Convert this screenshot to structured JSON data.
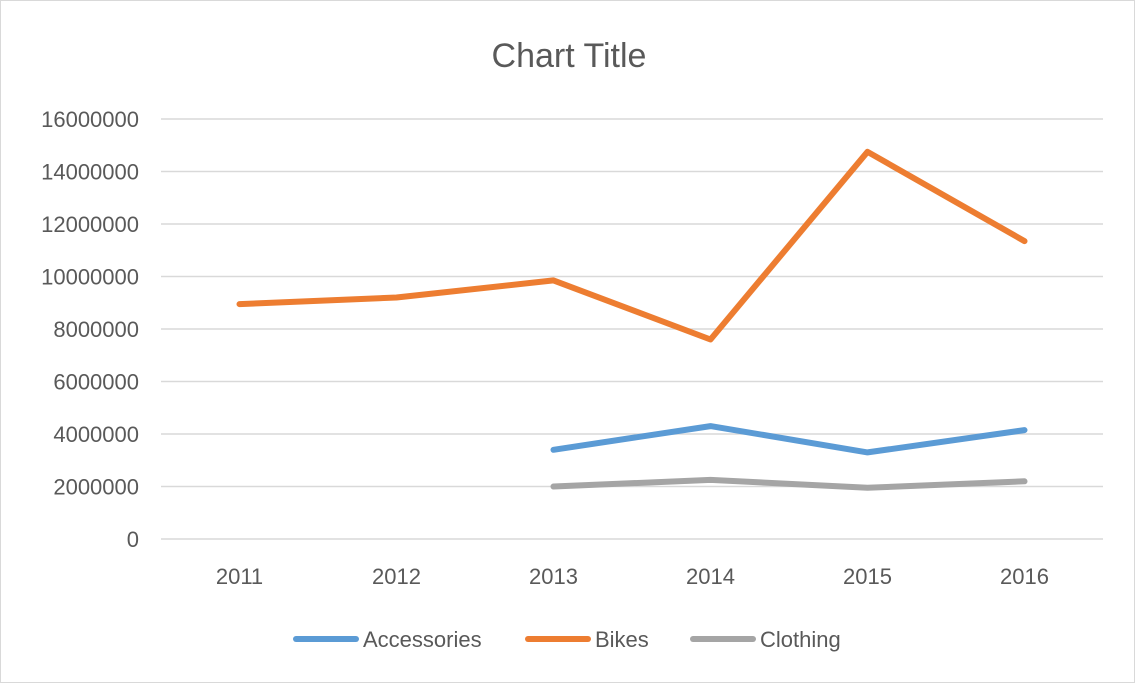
{
  "chart_data": {
    "type": "line",
    "title": "Chart Title",
    "xlabel": "",
    "ylabel": "",
    "categories": [
      "2011",
      "2012",
      "2013",
      "2014",
      "2015",
      "2016"
    ],
    "yticks": [
      "0",
      "2000000",
      "4000000",
      "6000000",
      "8000000",
      "10000000",
      "12000000",
      "14000000",
      "16000000"
    ],
    "ylim": [
      0,
      16000000
    ],
    "grid": true,
    "legend_position": "bottom",
    "series": [
      {
        "name": "Accessories",
        "color": "#5b9bd5",
        "values": [
          null,
          null,
          3400000,
          4300000,
          3300000,
          4150000
        ]
      },
      {
        "name": "Bikes",
        "color": "#ed7d31",
        "values": [
          8950000,
          9200000,
          9850000,
          7600000,
          14750000,
          11350000
        ]
      },
      {
        "name": "Clothing",
        "color": "#a5a5a5",
        "values": [
          null,
          null,
          2000000,
          2250000,
          1950000,
          2200000
        ]
      }
    ]
  }
}
